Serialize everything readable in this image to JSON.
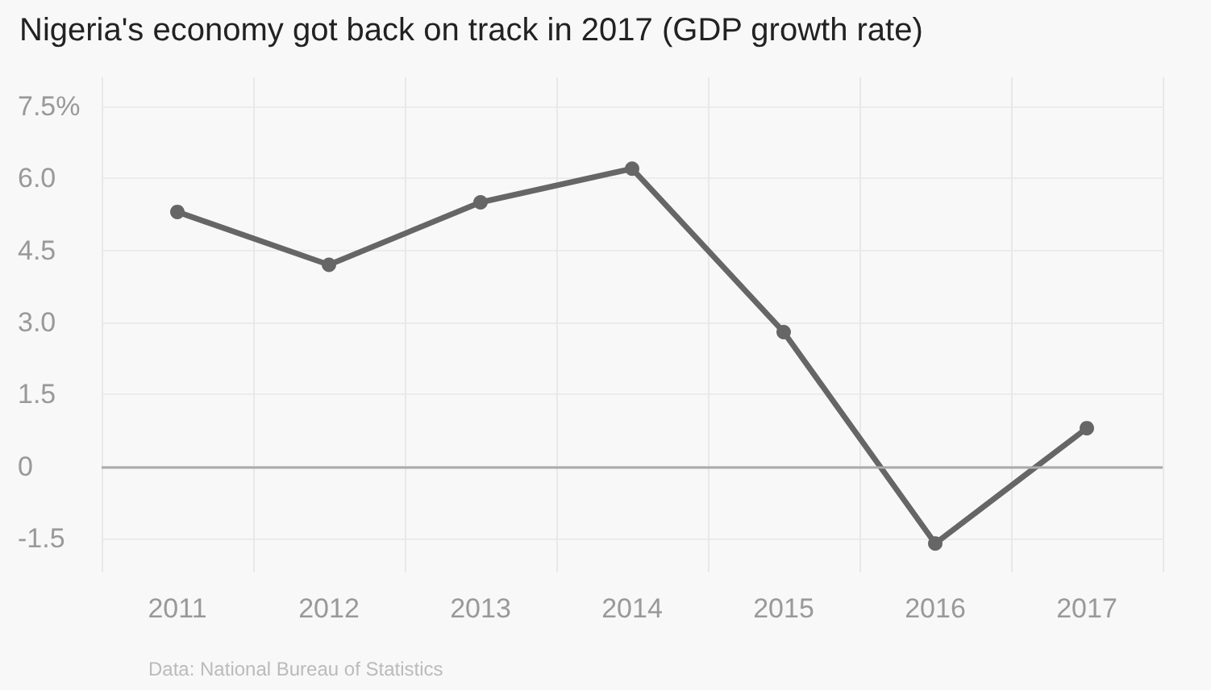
{
  "chart_data": {
    "type": "line",
    "title": "Nigeria's economy got back on track in 2017 (GDP growth rate)",
    "categories": [
      "2011",
      "2012",
      "2013",
      "2014",
      "2015",
      "2016",
      "2017"
    ],
    "series": [
      {
        "color": "#666666",
        "values": [
          5.3,
          4.2,
          5.5,
          6.2,
          2.8,
          -1.6,
          0.8
        ]
      }
    ],
    "ylim": [
      -2.2,
      8.1
    ],
    "yticks": [
      -1.5,
      0,
      1.5,
      {
        "value": 3,
        "label": "3.0"
      },
      4.5,
      {
        "value": 6,
        "label": "6.0"
      },
      {
        "value": 7.5,
        "label": "7.5%"
      }
    ],
    "grid": true,
    "marker": "circle",
    "line_style": "solid",
    "ref_lines": [
      {
        "axis": "y",
        "value": 0,
        "color": "#aaaaaa"
      }
    ],
    "annotations": [
      "Data: National Bureau of Statistics"
    ]
  }
}
